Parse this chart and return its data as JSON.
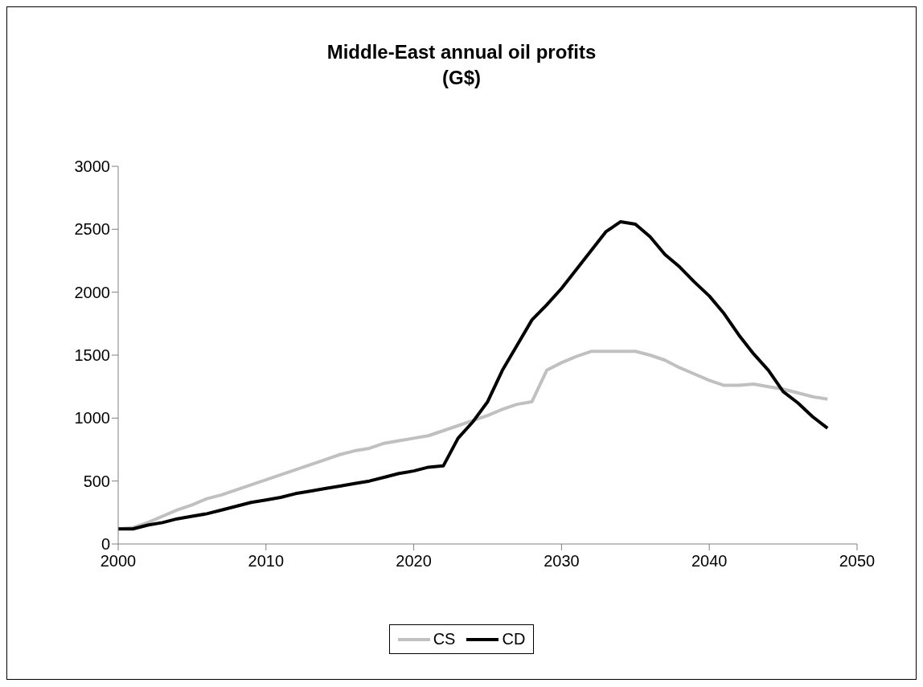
{
  "chart_data": {
    "type": "line",
    "title": "Middle-East annual oil profits",
    "subtitle": "(G$)",
    "x": [
      2000,
      2001,
      2002,
      2003,
      2004,
      2005,
      2006,
      2007,
      2008,
      2009,
      2010,
      2011,
      2012,
      2013,
      2014,
      2015,
      2016,
      2017,
      2018,
      2019,
      2020,
      2021,
      2022,
      2023,
      2024,
      2025,
      2026,
      2027,
      2028,
      2029,
      2030,
      2031,
      2032,
      2033,
      2034,
      2035,
      2036,
      2037,
      2038,
      2039,
      2040,
      2041,
      2042,
      2043,
      2044,
      2045,
      2046,
      2047,
      2048
    ],
    "series": [
      {
        "name": "CS",
        "color": "#c0c0c0",
        "values": [
          120,
          130,
          170,
          220,
          270,
          310,
          360,
          390,
          430,
          470,
          510,
          550,
          590,
          630,
          670,
          710,
          740,
          760,
          800,
          820,
          840,
          860,
          900,
          940,
          980,
          1020,
          1070,
          1110,
          1130,
          1380,
          1440,
          1490,
          1530,
          1530,
          1530,
          1530,
          1500,
          1460,
          1400,
          1350,
          1300,
          1260,
          1260,
          1270,
          1250,
          1230,
          1200,
          1170,
          1150
        ]
      },
      {
        "name": "CD",
        "color": "#000000",
        "values": [
          120,
          120,
          150,
          170,
          200,
          220,
          240,
          270,
          300,
          330,
          350,
          370,
          400,
          420,
          440,
          460,
          480,
          500,
          530,
          560,
          580,
          610,
          620,
          840,
          970,
          1130,
          1380,
          1580,
          1780,
          1900,
          2030,
          2180,
          2330,
          2480,
          2560,
          2540,
          2440,
          2300,
          2200,
          2080,
          1970,
          1830,
          1660,
          1510,
          1380,
          1210,
          1120,
          1010,
          920
        ]
      }
    ],
    "xlim": [
      2000,
      2050
    ],
    "xticks": [
      2000,
      2010,
      2020,
      2030,
      2040,
      2050
    ],
    "ylim": [
      0,
      3000
    ],
    "yticks": [
      0,
      500,
      1000,
      1500,
      2000,
      2500,
      3000
    ],
    "grid": false,
    "legend": "bottom",
    "marker": "none",
    "line_style": "solid"
  }
}
